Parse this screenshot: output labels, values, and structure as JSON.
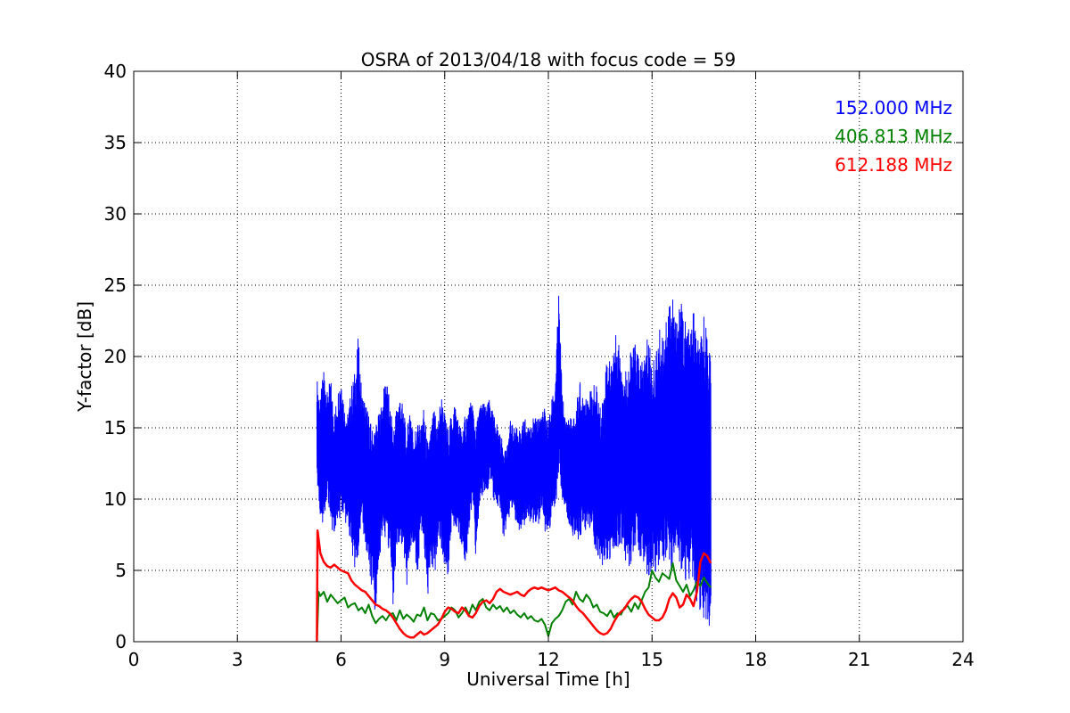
{
  "chart_data": {
    "type": "line",
    "title": "OSRA of 2013/04/18 with focus code = 59",
    "xlabel": "Universal Time [h]",
    "ylabel": "Y-factor [dB]",
    "xlim": [
      0,
      24
    ],
    "ylim": [
      0,
      40
    ],
    "xticks": [
      0,
      3,
      6,
      9,
      12,
      15,
      18,
      21,
      24
    ],
    "yticks": [
      0,
      5,
      10,
      15,
      20,
      25,
      30,
      35,
      40
    ],
    "xtick_labels": [
      "0",
      "3",
      "6",
      "9",
      "12",
      "15",
      "18",
      "21",
      "24"
    ],
    "ytick_labels": [
      "0",
      "5",
      "10",
      "15",
      "20",
      "25",
      "30",
      "35",
      "40"
    ],
    "grid": true,
    "legend_position": "top-right",
    "series": [
      {
        "name": "152.000 MHz",
        "color": "#0000ff",
        "line_width": 1,
        "x": [
          5.3,
          5.4,
          5.5,
          5.6,
          5.7,
          5.8,
          5.9,
          6.0,
          6.1,
          6.2,
          6.3,
          6.4,
          6.5,
          6.6,
          6.7,
          6.8,
          6.9,
          7.0,
          7.1,
          7.2,
          7.3,
          7.4,
          7.5,
          7.6,
          7.7,
          7.8,
          7.9,
          8.0,
          8.1,
          8.2,
          8.3,
          8.4,
          8.5,
          8.6,
          8.7,
          8.8,
          8.9,
          9.0,
          9.1,
          9.2,
          9.3,
          9.4,
          9.5,
          9.6,
          9.7,
          9.8,
          9.9,
          10.0,
          10.1,
          10.2,
          10.3,
          10.4,
          10.5,
          10.6,
          10.7,
          10.8,
          10.9,
          11.0,
          11.1,
          11.2,
          11.3,
          11.4,
          11.5,
          11.6,
          11.7,
          11.8,
          11.9,
          12.0,
          12.1,
          12.2,
          12.3,
          12.4,
          12.5,
          12.6,
          12.7,
          12.8,
          12.9,
          13.0,
          13.1,
          13.2,
          13.3,
          13.4,
          13.5,
          13.6,
          13.7,
          13.8,
          13.9,
          14.0,
          14.1,
          14.2,
          14.3,
          14.4,
          14.5,
          14.6,
          14.7,
          14.8,
          14.9,
          15.0,
          15.1,
          15.2,
          15.3,
          15.4,
          15.5,
          15.6,
          15.7,
          15.8,
          15.9,
          16.0,
          16.1,
          16.2,
          16.3,
          16.4,
          16.5,
          16.6,
          16.7
        ],
        "y_low": [
          11,
          8.5,
          8,
          10.5,
          8,
          7.5,
          8,
          9,
          8.5,
          8,
          6,
          5,
          6,
          8,
          7,
          5,
          3.5,
          1.5,
          5.5,
          7.5,
          7,
          6,
          2.5,
          6.5,
          7,
          6.5,
          4,
          6,
          7,
          4,
          7.5,
          6.5,
          3,
          5.5,
          4.5,
          7,
          6.5,
          5,
          4.5,
          8.5,
          7.5,
          7,
          6.5,
          5,
          8,
          10,
          5.5,
          9,
          10.5,
          10,
          11.5,
          10,
          9.5,
          9,
          7,
          8,
          9,
          9,
          8,
          7.5,
          8,
          9,
          8,
          8.5,
          8,
          9.5,
          7.5,
          7.5,
          8.5,
          9,
          12,
          10,
          9,
          8,
          7.5,
          7,
          6.5,
          8,
          7.5,
          8,
          7,
          6,
          5,
          5.5,
          5,
          6,
          6.5,
          6.5,
          7,
          5.5,
          5,
          5.5,
          6.5,
          6,
          5.5,
          4.5,
          4,
          5.5,
          4.5,
          5,
          5,
          6,
          5.5,
          4,
          5.5,
          4.5,
          4,
          4,
          4.5,
          4,
          2.5,
          2,
          1.5,
          0.5,
          0
        ],
        "y_high": [
          18.5,
          17,
          19.5,
          17.5,
          18.5,
          16,
          17.5,
          19,
          16.5,
          16,
          18,
          19,
          21.5,
          17.5,
          17,
          16,
          15,
          15.5,
          16,
          17,
          19,
          17,
          15,
          16.5,
          17.5,
          16.5,
          14.5,
          17,
          14.5,
          15.5,
          15,
          16.5,
          14,
          15,
          16.5,
          15.5,
          17.5,
          16,
          15,
          16,
          17,
          15.5,
          15,
          16,
          16.5,
          17,
          15,
          16.5,
          17,
          16.5,
          17,
          16,
          15.5,
          14.5,
          14,
          13.5,
          15.5,
          15,
          15.5,
          14.5,
          16,
          15,
          16,
          15.5,
          16,
          16,
          16.5,
          15.5,
          17,
          18.5,
          24.5,
          17.5,
          15.5,
          16,
          15.5,
          16.5,
          18.5,
          17,
          18,
          17.5,
          18,
          18,
          16.5,
          17.5,
          20.5,
          19.5,
          21.5,
          21.5,
          20.5,
          19,
          19.5,
          20.5,
          21,
          20.5,
          19.5,
          20.5,
          22,
          19.5,
          20,
          22,
          21.5,
          23,
          24.5,
          24.5,
          22.5,
          24.5,
          23,
          22.5,
          21.5,
          23.5,
          21.5,
          21,
          23,
          22,
          21
        ]
      },
      {
        "name": "406.813 MHz",
        "color": "#008000",
        "line_width": 2,
        "x": [
          5.3,
          5.35,
          5.4,
          5.5,
          5.6,
          5.7,
          5.8,
          5.9,
          6.0,
          6.1,
          6.2,
          6.3,
          6.4,
          6.5,
          6.6,
          6.7,
          6.8,
          6.9,
          7.0,
          7.1,
          7.2,
          7.3,
          7.4,
          7.5,
          7.6,
          7.7,
          7.8,
          7.9,
          8.0,
          8.1,
          8.2,
          8.3,
          8.4,
          8.5,
          8.6,
          8.7,
          8.8,
          8.9,
          9.0,
          9.1,
          9.2,
          9.3,
          9.4,
          9.5,
          9.6,
          9.7,
          9.8,
          9.9,
          10.0,
          10.1,
          10.2,
          10.3,
          10.4,
          10.5,
          10.6,
          10.7,
          10.8,
          10.9,
          11.0,
          11.1,
          11.2,
          11.3,
          11.4,
          11.5,
          11.6,
          11.7,
          11.8,
          11.9,
          12.0,
          12.1,
          12.2,
          12.3,
          12.4,
          12.5,
          12.6,
          12.7,
          12.8,
          12.9,
          13.0,
          13.1,
          13.2,
          13.3,
          13.4,
          13.5,
          13.6,
          13.7,
          13.8,
          13.9,
          14.0,
          14.1,
          14.2,
          14.3,
          14.4,
          14.5,
          14.6,
          14.7,
          14.8,
          14.9,
          15.0,
          15.1,
          15.2,
          15.3,
          15.4,
          15.5,
          15.6,
          15.7,
          15.8,
          15.9,
          16.0,
          16.1,
          16.2,
          16.3,
          16.4,
          16.5,
          16.6,
          16.7
        ],
        "y": [
          0,
          3.5,
          3.2,
          3.5,
          2.8,
          3.3,
          3.0,
          2.7,
          2.9,
          3.1,
          2.4,
          2.6,
          2.7,
          2.2,
          2.4,
          2.0,
          2.6,
          1.8,
          1.3,
          1.6,
          1.8,
          1.5,
          1.9,
          2.0,
          1.5,
          2.2,
          1.6,
          1.9,
          1.7,
          1.4,
          1.9,
          1.8,
          2.4,
          1.5,
          2.0,
          1.9,
          1.5,
          1.6,
          1.8,
          2.0,
          2.4,
          2.2,
          1.7,
          2.0,
          2.4,
          1.9,
          2.6,
          2.2,
          2.8,
          3.0,
          2.4,
          2.2,
          2.6,
          2.3,
          2.5,
          2.1,
          2.4,
          2.0,
          2.2,
          1.9,
          1.7,
          2.0,
          1.6,
          1.8,
          1.5,
          1.4,
          1.6,
          1.2,
          0.4,
          1.3,
          1.6,
          1.8,
          2.2,
          2.8,
          3.0,
          2.6,
          3.5,
          3.0,
          2.8,
          3.3,
          3.0,
          2.4,
          2.6,
          2.1,
          2.0,
          1.8,
          2.2,
          1.7,
          2.0,
          1.9,
          2.4,
          2.5,
          2.1,
          2.7,
          2.3,
          2.9,
          3.5,
          3.8,
          5.0,
          4.5,
          4.2,
          4.8,
          4.6,
          4.4,
          5.5,
          4.3,
          3.9,
          3.5,
          4.0,
          3.2,
          3.6,
          4.2,
          3.9,
          4.5,
          4.1,
          3.8
        ]
      },
      {
        "name": "612.188 MHz",
        "color": "#ff0000",
        "line_width": 2.5,
        "x": [
          5.3,
          5.32,
          5.4,
          5.5,
          5.6,
          5.7,
          5.8,
          5.9,
          6.0,
          6.1,
          6.2,
          6.3,
          6.4,
          6.5,
          6.6,
          6.7,
          6.8,
          6.9,
          7.0,
          7.1,
          7.2,
          7.3,
          7.4,
          7.5,
          7.6,
          7.7,
          7.8,
          7.9,
          8.0,
          8.1,
          8.2,
          8.3,
          8.4,
          8.5,
          8.6,
          8.7,
          8.8,
          8.9,
          9.0,
          9.1,
          9.2,
          9.3,
          9.4,
          9.5,
          9.6,
          9.7,
          9.8,
          9.9,
          10.0,
          10.1,
          10.2,
          10.3,
          10.4,
          10.5,
          10.6,
          10.7,
          10.8,
          10.9,
          11.0,
          11.1,
          11.2,
          11.3,
          11.4,
          11.5,
          11.6,
          11.7,
          11.8,
          11.9,
          12.0,
          12.1,
          12.2,
          12.3,
          12.4,
          12.5,
          12.6,
          12.7,
          12.8,
          12.9,
          13.0,
          13.1,
          13.2,
          13.3,
          13.4,
          13.5,
          13.6,
          13.7,
          13.8,
          13.9,
          14.0,
          14.1,
          14.2,
          14.3,
          14.4,
          14.5,
          14.6,
          14.7,
          14.8,
          14.9,
          15.0,
          15.1,
          15.2,
          15.3,
          15.4,
          15.5,
          15.6,
          15.7,
          15.8,
          15.9,
          16.0,
          16.1,
          16.2,
          16.3,
          16.4,
          16.5,
          16.6,
          16.7
        ],
        "y": [
          0,
          7.8,
          6.2,
          5.6,
          5.3,
          5.2,
          5.4,
          5.2,
          5.0,
          4.9,
          4.8,
          4.3,
          4.0,
          3.8,
          3.6,
          3.5,
          3.2,
          2.9,
          2.6,
          2.5,
          2.3,
          2.2,
          2.0,
          1.7,
          1.3,
          0.9,
          0.6,
          0.4,
          0.3,
          0.3,
          0.5,
          0.7,
          0.5,
          0.6,
          0.8,
          1.0,
          1.2,
          1.6,
          2.1,
          2.4,
          2.3,
          2.1,
          2.0,
          2.4,
          2.2,
          1.8,
          1.7,
          2.0,
          2.5,
          2.8,
          2.9,
          2.7,
          3.0,
          3.5,
          3.7,
          3.5,
          3.4,
          3.3,
          3.4,
          3.5,
          3.3,
          3.2,
          3.5,
          3.7,
          3.8,
          3.7,
          3.8,
          3.7,
          3.6,
          3.7,
          3.8,
          3.6,
          3.5,
          3.3,
          3.1,
          2.9,
          2.5,
          2.2,
          2.0,
          1.7,
          1.4,
          1.1,
          0.8,
          0.6,
          0.5,
          0.6,
          0.9,
          1.4,
          1.8,
          2.1,
          2.3,
          2.7,
          3.0,
          3.2,
          3.1,
          2.8,
          2.3,
          1.9,
          1.7,
          1.5,
          1.5,
          1.7,
          2.2,
          3.0,
          3.4,
          3.1,
          2.4,
          2.6,
          3.3,
          3.0,
          2.5,
          3.5,
          5.6,
          6.2,
          6.0,
          5.5
        ]
      }
    ]
  }
}
